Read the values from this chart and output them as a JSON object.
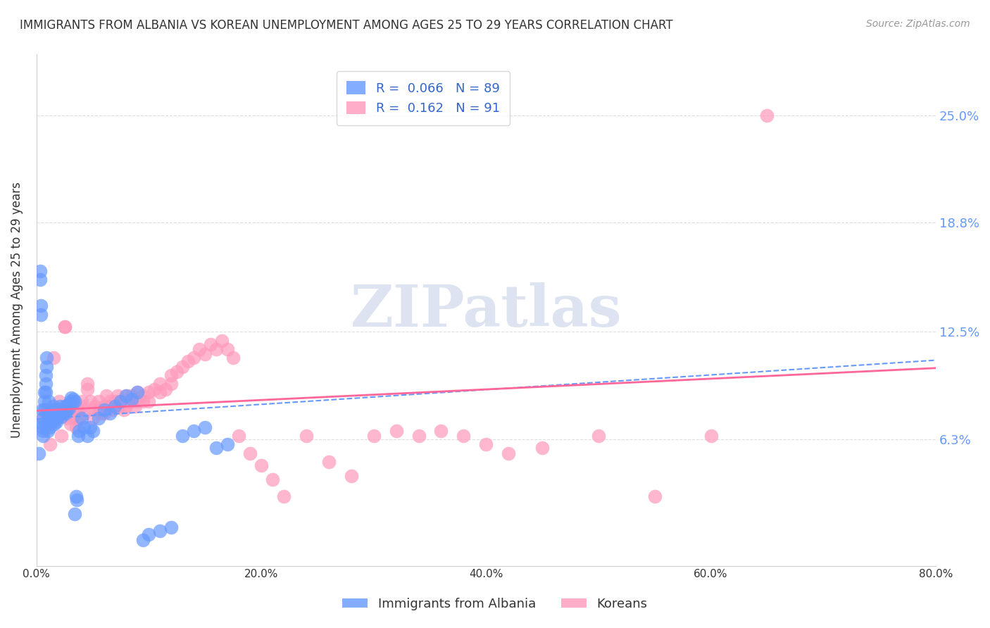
{
  "title": "IMMIGRANTS FROM ALBANIA VS KOREAN UNEMPLOYMENT AMONG AGES 25 TO 29 YEARS CORRELATION CHART",
  "source": "Source: ZipAtlas.com",
  "ylabel": "Unemployment Among Ages 25 to 29 years",
  "xlabel": "",
  "xlim": [
    0.0,
    0.8
  ],
  "ylim": [
    -0.01,
    0.285
  ],
  "xtick_labels": [
    "0.0%",
    "20.0%",
    "40.0%",
    "60.0%",
    "80.0%"
  ],
  "xtick_vals": [
    0.0,
    0.2,
    0.4,
    0.6,
    0.8
  ],
  "ytick_labels": [
    "6.3%",
    "12.5%",
    "18.8%",
    "25.0%"
  ],
  "ytick_vals": [
    0.063,
    0.125,
    0.188,
    0.25
  ],
  "albania_color": "#6699ff",
  "korea_color": "#ff99bb",
  "albania_R": 0.066,
  "albania_N": 89,
  "korea_R": 0.162,
  "korea_N": 91,
  "legend_label_albania": "Immigrants from Albania",
  "legend_label_korea": "Koreans",
  "watermark": "ZIPatlas",
  "watermark_color": "#aabbdd",
  "background_color": "#ffffff",
  "grid_color": "#dddddd",
  "axis_color": "#cccccc",
  "title_color": "#333333",
  "right_tick_color": "#6699ff",
  "albania_scatter": {
    "x": [
      0.002,
      0.003,
      0.003,
      0.004,
      0.004,
      0.005,
      0.005,
      0.005,
      0.006,
      0.006,
      0.006,
      0.007,
      0.007,
      0.007,
      0.008,
      0.008,
      0.008,
      0.009,
      0.009,
      0.01,
      0.01,
      0.01,
      0.01,
      0.011,
      0.011,
      0.012,
      0.012,
      0.013,
      0.013,
      0.014,
      0.014,
      0.015,
      0.015,
      0.016,
      0.016,
      0.016,
      0.017,
      0.017,
      0.018,
      0.018,
      0.018,
      0.019,
      0.019,
      0.02,
      0.02,
      0.021,
      0.021,
      0.022,
      0.022,
      0.023,
      0.024,
      0.025,
      0.025,
      0.026,
      0.027,
      0.028,
      0.029,
      0.03,
      0.031,
      0.032,
      0.033,
      0.034,
      0.034,
      0.035,
      0.036,
      0.037,
      0.038,
      0.04,
      0.042,
      0.045,
      0.048,
      0.05,
      0.055,
      0.06,
      0.065,
      0.07,
      0.075,
      0.08,
      0.085,
      0.09,
      0.095,
      0.1,
      0.11,
      0.12,
      0.13,
      0.14,
      0.15,
      0.16,
      0.17
    ],
    "y": [
      0.055,
      0.16,
      0.155,
      0.14,
      0.135,
      0.08,
      0.072,
      0.07,
      0.075,
      0.068,
      0.065,
      0.09,
      0.085,
      0.08,
      0.1,
      0.095,
      0.09,
      0.11,
      0.105,
      0.078,
      0.075,
      0.072,
      0.068,
      0.085,
      0.08,
      0.073,
      0.07,
      0.076,
      0.073,
      0.08,
      0.077,
      0.082,
      0.078,
      0.075,
      0.074,
      0.072,
      0.08,
      0.078,
      0.076,
      0.075,
      0.073,
      0.078,
      0.076,
      0.08,
      0.078,
      0.082,
      0.08,
      0.078,
      0.076,
      0.08,
      0.078,
      0.082,
      0.08,
      0.078,
      0.08,
      0.083,
      0.081,
      0.085,
      0.087,
      0.084,
      0.086,
      0.085,
      0.02,
      0.03,
      0.028,
      0.065,
      0.068,
      0.075,
      0.07,
      0.065,
      0.07,
      0.068,
      0.075,
      0.08,
      0.078,
      0.082,
      0.085,
      0.088,
      0.086,
      0.09,
      0.005,
      0.008,
      0.01,
      0.012,
      0.065,
      0.068,
      0.07,
      0.058,
      0.06
    ]
  },
  "korea_scatter": {
    "x": [
      0.005,
      0.008,
      0.01,
      0.012,
      0.015,
      0.018,
      0.02,
      0.022,
      0.025,
      0.025,
      0.028,
      0.03,
      0.03,
      0.032,
      0.035,
      0.035,
      0.038,
      0.038,
      0.04,
      0.04,
      0.042,
      0.045,
      0.045,
      0.048,
      0.05,
      0.05,
      0.052,
      0.055,
      0.055,
      0.058,
      0.06,
      0.06,
      0.062,
      0.065,
      0.065,
      0.068,
      0.07,
      0.07,
      0.072,
      0.075,
      0.075,
      0.078,
      0.08,
      0.08,
      0.082,
      0.085,
      0.085,
      0.088,
      0.09,
      0.09,
      0.095,
      0.095,
      0.1,
      0.1,
      0.105,
      0.11,
      0.11,
      0.115,
      0.12,
      0.12,
      0.125,
      0.13,
      0.135,
      0.14,
      0.145,
      0.15,
      0.155,
      0.16,
      0.165,
      0.17,
      0.175,
      0.18,
      0.19,
      0.2,
      0.21,
      0.22,
      0.24,
      0.26,
      0.28,
      0.3,
      0.32,
      0.34,
      0.36,
      0.38,
      0.4,
      0.42,
      0.45,
      0.5,
      0.55,
      0.6,
      0.65
    ],
    "y": [
      0.075,
      0.07,
      0.08,
      0.06,
      0.11,
      0.075,
      0.085,
      0.065,
      0.128,
      0.128,
      0.075,
      0.078,
      0.072,
      0.075,
      0.07,
      0.08,
      0.08,
      0.075,
      0.085,
      0.082,
      0.078,
      0.095,
      0.092,
      0.085,
      0.08,
      0.075,
      0.082,
      0.085,
      0.08,
      0.078,
      0.082,
      0.078,
      0.088,
      0.085,
      0.082,
      0.08,
      0.085,
      0.082,
      0.088,
      0.085,
      0.082,
      0.08,
      0.088,
      0.082,
      0.085,
      0.088,
      0.085,
      0.082,
      0.09,
      0.085,
      0.088,
      0.085,
      0.09,
      0.085,
      0.092,
      0.095,
      0.09,
      0.092,
      0.1,
      0.095,
      0.102,
      0.105,
      0.108,
      0.11,
      0.115,
      0.112,
      0.118,
      0.115,
      0.12,
      0.115,
      0.11,
      0.065,
      0.055,
      0.048,
      0.04,
      0.03,
      0.065,
      0.05,
      0.042,
      0.065,
      0.068,
      0.065,
      0.068,
      0.065,
      0.06,
      0.055,
      0.058,
      0.065,
      0.03,
      0.065,
      0.25
    ]
  }
}
